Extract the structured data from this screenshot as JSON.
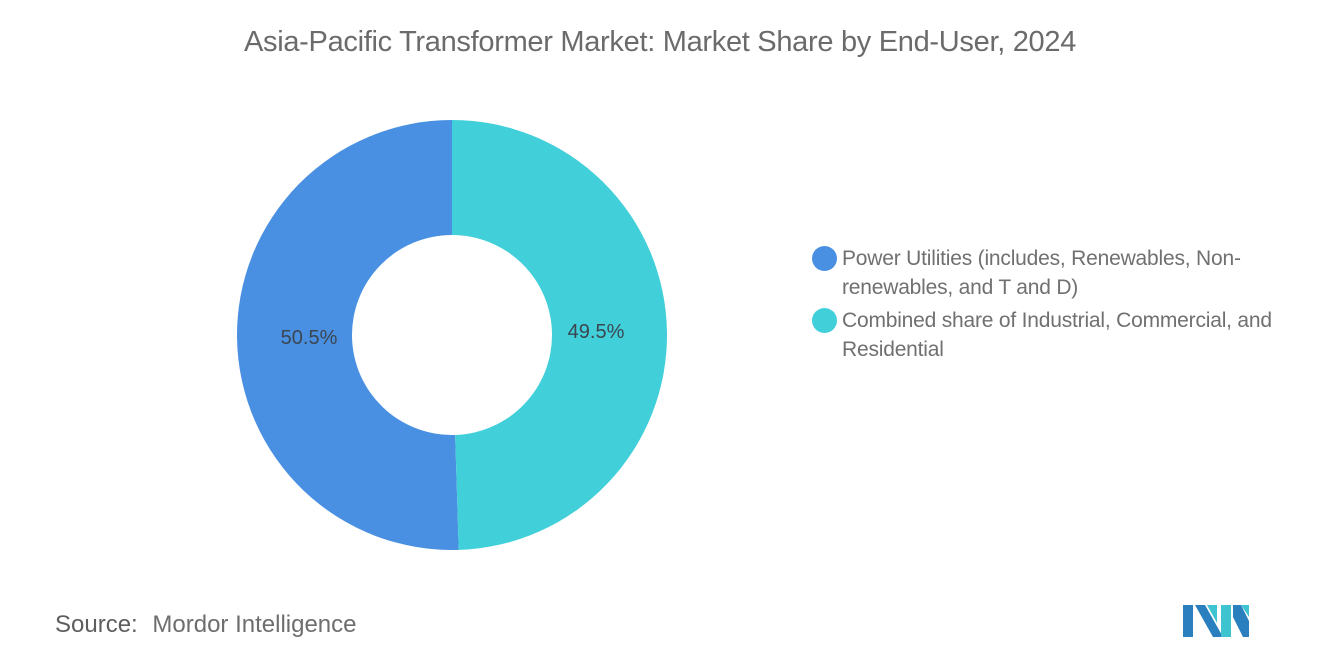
{
  "header": {
    "title": "Asia-Pacific Transformer Market: Market Share by End-User, 2024"
  },
  "chart_data": {
    "type": "pie",
    "variant": "donut",
    "title": "Asia-Pacific Transformer Market: Market Share by End-User, 2024",
    "categories": [
      "Power Utilities (includes, Renewables, Non-renewables, and T and D)",
      "Combined share of Industrial, Commercial, and Residential"
    ],
    "values": [
      50.5,
      49.5
    ],
    "unit": "%",
    "colors": [
      "#4A90E2",
      "#41CFD9"
    ],
    "data_labels": [
      "50.5%",
      "49.5%"
    ],
    "legend_position": "right"
  },
  "slices": [
    {
      "label": "50.5%",
      "color": "#4A90E2"
    },
    {
      "label": "49.5%",
      "color": "#41CFD9"
    }
  ],
  "legend": {
    "items": [
      {
        "label": "Power Utilities (includes, Renewables, Non-renewables, and T and D)",
        "color": "#4A90E2"
      },
      {
        "label": "Combined share of Industrial, Commercial, and Residential",
        "color": "#41CFD9"
      }
    ]
  },
  "footer": {
    "source_label": "Source:",
    "source_value": "Mordor Intelligence",
    "logo_icon": "mordor-intelligence-logo-icon"
  }
}
